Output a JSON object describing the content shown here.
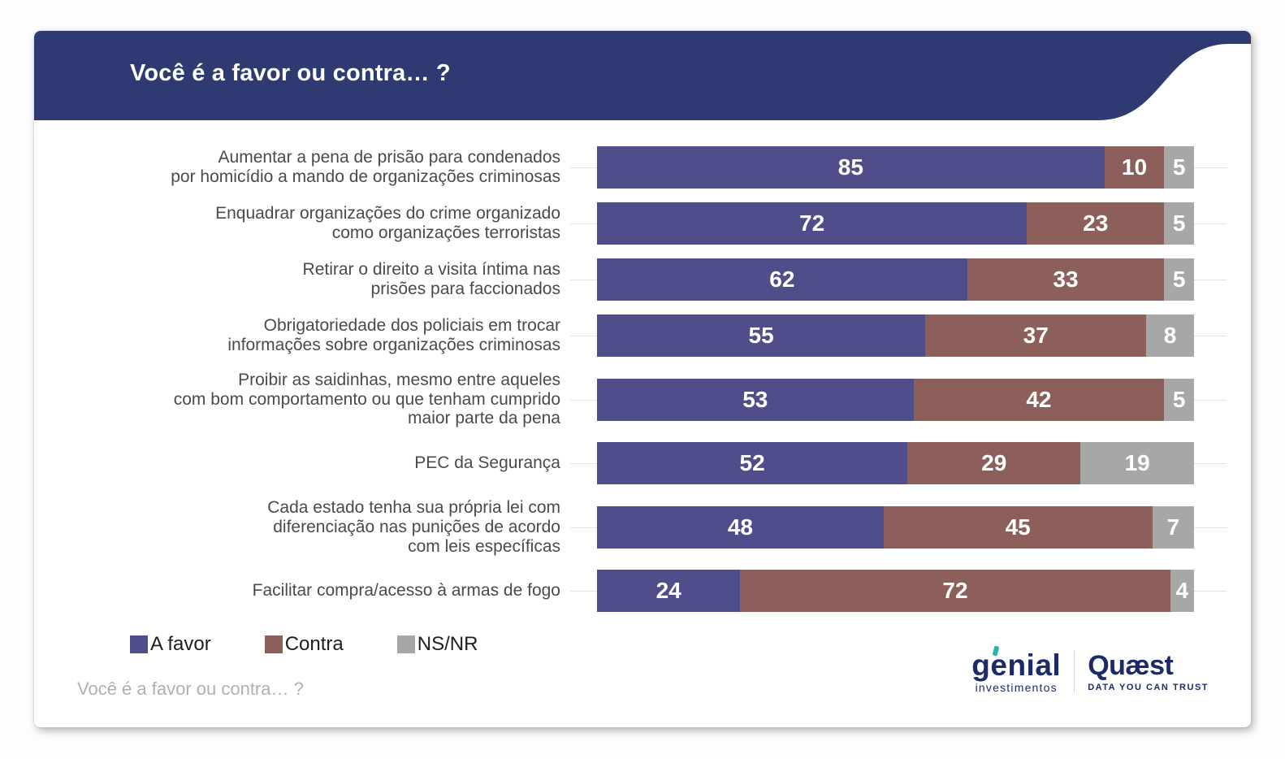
{
  "header": {
    "title": "Você é a favor ou contra… ?"
  },
  "chart_data": {
    "type": "bar",
    "orientation": "horizontal",
    "stacked": true,
    "value_labels": true,
    "xlim": [
      0,
      100
    ],
    "grid": "category-ticks-light-gray",
    "legend_position": "bottom-left",
    "categories": [
      "Aumentar a pena de prisão para condenados\npor homicídio a mando de organizações criminosas",
      "Enquadrar organizações do crime organizado\ncomo organizações terroristas",
      "Retirar o direito a visita íntima nas\nprisões para faccionados",
      "Obrigatoriedade dos policiais em trocar\ninformações sobre organizações criminosas",
      "Proibir as saidinhas, mesmo entre aqueles\ncom bom comportamento ou que tenham cumprido\nmaior parte da pena",
      "PEC da Segurança",
      "Cada estado tenha sua própria lei com\ndiferenciação nas punições de acordo\ncom leis específicas",
      "Facilitar compra/acesso à armas de fogo"
    ],
    "series": [
      {
        "key": "a-favor",
        "name": "A favor",
        "color": "#4f4e8b",
        "values": [
          85,
          72,
          62,
          55,
          53,
          52,
          48,
          24
        ]
      },
      {
        "key": "contra",
        "name": "Contra",
        "color": "#8c5f5b",
        "values": [
          10,
          23,
          33,
          37,
          42,
          29,
          45,
          72
        ]
      },
      {
        "key": "ns-nr",
        "name": "NS/NR",
        "color": "#a8a7a7",
        "values": [
          5,
          5,
          5,
          8,
          5,
          19,
          7,
          4
        ]
      }
    ]
  },
  "footer": {
    "question": "Você é a favor ou contra… ?"
  },
  "branding": {
    "genial": {
      "wordmark": "genial",
      "sub": "investimentos"
    },
    "quaest": {
      "wordmark": "Quæst",
      "tagline": "DATA YOU CAN TRUST"
    }
  },
  "colors": {
    "header_band": "#2e3a71",
    "a_favor": "#4f4e8b",
    "contra": "#8c5f5b",
    "ns_nr": "#a8a7a7",
    "gridline": "#e3e3e3",
    "label_text": "#4a4a4a",
    "footer_text": "#b0b0b0",
    "logo_navy": "#1c2a6a",
    "genial_accent": "#2cb4aa"
  }
}
